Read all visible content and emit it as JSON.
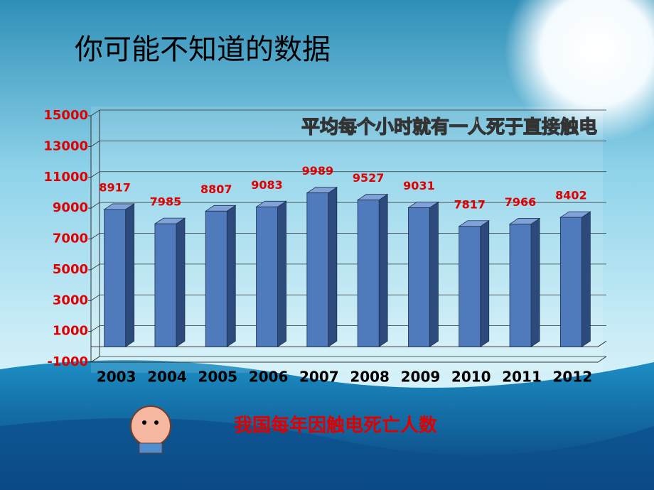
{
  "header": {
    "title": "你可能不知道的数据"
  },
  "chart_data": {
    "type": "bar3d",
    "title": "平均每个小时就有一人死于直接触电",
    "caption": "我国每年因触电死亡人数",
    "categories": [
      "2003",
      "2004",
      "2005",
      "2006",
      "2007",
      "2008",
      "2009",
      "2010",
      "2011",
      "2012"
    ],
    "values": [
      8917,
      7985,
      8807,
      9083,
      9989,
      9527,
      9031,
      7817,
      7966,
      8402
    ],
    "color": "#4f7bbd",
    "ylim": [
      -1000,
      15000
    ],
    "yticks": [
      -1000,
      1000,
      3000,
      5000,
      7000,
      9000,
      11000,
      13000,
      15000
    ],
    "grid": true
  }
}
